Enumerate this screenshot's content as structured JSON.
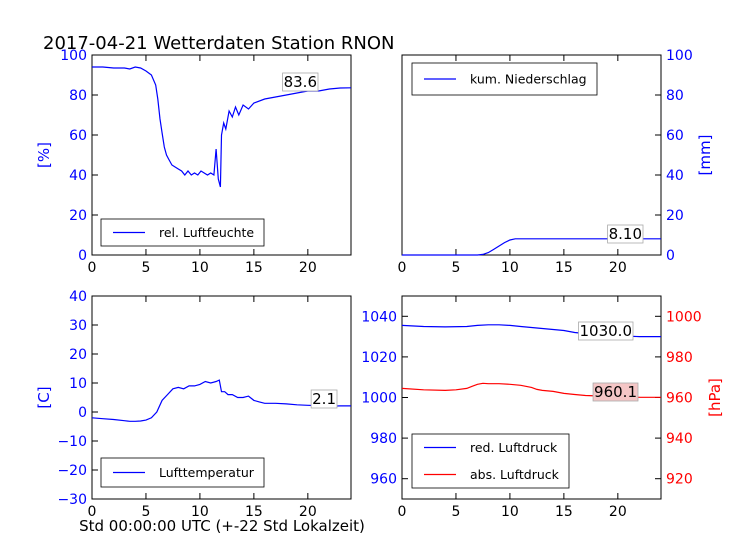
{
  "title": "2017-04-21 Wetterdaten Station RNON",
  "xlabel": "Std 00:00:00 UTC (+-22 Std Lokalzeit)",
  "colors": {
    "blue": "#0000ff",
    "red": "#ff0000"
  },
  "chart_data": [
    {
      "type": "line",
      "id": "humidity",
      "xlim": [
        0,
        24
      ],
      "ylim": [
        0,
        100
      ],
      "yticks": [
        0,
        20,
        40,
        60,
        80,
        100
      ],
      "xticks": [
        0,
        5,
        10,
        15,
        20
      ],
      "ylabel": "[%]",
      "ylabel_side": "left",
      "legend_position": "lower-left",
      "annotation": "83.6",
      "series": [
        {
          "name": "rel. Luftfeuchte",
          "color": "#0000ff",
          "x": [
            0,
            0.5,
            1,
            2,
            3,
            3.5,
            4,
            4.5,
            5,
            5.5,
            5.9,
            6.1,
            6.3,
            6.5,
            6.7,
            6.9,
            7.1,
            7.4,
            7.7,
            8.0,
            8.3,
            8.6,
            8.9,
            9.2,
            9.5,
            9.8,
            10.1,
            10.4,
            10.7,
            11.0,
            11.3,
            11.5,
            11.7,
            11.9,
            12.0,
            12.2,
            12.4,
            12.7,
            13.0,
            13.3,
            13.6,
            14.0,
            14.5,
            15,
            16,
            17,
            18,
            19,
            20,
            21,
            22,
            23,
            24
          ],
          "y": [
            94,
            94,
            94,
            93.5,
            93.5,
            93,
            94,
            93.5,
            92,
            90,
            85,
            78,
            68,
            61,
            54,
            50,
            48,
            45,
            44,
            43,
            42,
            40,
            42,
            40,
            41,
            40,
            42,
            41,
            40,
            41,
            40,
            53,
            38,
            34,
            60,
            66,
            63,
            72,
            69,
            74,
            70,
            75,
            73,
            76,
            78,
            79,
            80,
            81,
            82,
            82,
            83,
            83.5,
            83.6
          ]
        }
      ]
    },
    {
      "type": "line",
      "id": "precipitation",
      "xlim": [
        0,
        24
      ],
      "ylim": [
        0,
        100
      ],
      "yticks": [
        0,
        20,
        40,
        60,
        80,
        100
      ],
      "xticks": [
        0,
        5,
        10,
        15,
        20
      ],
      "ylabel": "[mm]",
      "ylabel_side": "right",
      "legend_position": "upper-left",
      "annotation": "8.10",
      "series": [
        {
          "name": "kum. Niederschlag",
          "color": "#0000ff",
          "x": [
            0,
            5,
            7,
            7.5,
            8,
            8.5,
            9,
            9.5,
            10,
            10.5,
            11,
            24
          ],
          "y": [
            0,
            0,
            0,
            0.3,
            1.2,
            2.8,
            4.5,
            6.2,
            7.5,
            8.1,
            8.1,
            8.1
          ]
        }
      ]
    },
    {
      "type": "line",
      "id": "temperature",
      "xlim": [
        0,
        24
      ],
      "ylim": [
        -30,
        40
      ],
      "yticks": [
        -30,
        -20,
        -10,
        0,
        10,
        20,
        30,
        40
      ],
      "xticks": [
        0,
        5,
        10,
        15,
        20
      ],
      "ylabel": "[C]",
      "ylabel_side": "left",
      "legend_position": "lower-left",
      "annotation": "2.1",
      "series": [
        {
          "name": "Lufttemperatur",
          "color": "#0000ff",
          "x": [
            0,
            1,
            2,
            3,
            3.5,
            4,
            4.5,
            5,
            5.5,
            6,
            6.5,
            7,
            7.5,
            8,
            8.5,
            9,
            9.5,
            10,
            10.5,
            11,
            11.5,
            11.8,
            12,
            12.3,
            12.6,
            13,
            13.5,
            14,
            14.5,
            15,
            15.5,
            16,
            17,
            18,
            19,
            20,
            21,
            22,
            23,
            24
          ],
          "y": [
            -2.0,
            -2.3,
            -2.6,
            -3.0,
            -3.2,
            -3.2,
            -3.1,
            -2.8,
            -2.0,
            0,
            4,
            6,
            8,
            8.5,
            8,
            9,
            9,
            9.5,
            10.5,
            10,
            10.5,
            11,
            7,
            7,
            6,
            6,
            5,
            5,
            5.5,
            4,
            3.5,
            3,
            3,
            2.8,
            2.5,
            2.3,
            2.2,
            2.0,
            2.1,
            2.1
          ]
        }
      ]
    },
    {
      "type": "line",
      "id": "pressure",
      "xlim": [
        0,
        24
      ],
      "ylim": [
        950,
        1050
      ],
      "yticks": [
        960,
        980,
        1000,
        1020,
        1040
      ],
      "y2lim": [
        910,
        1010
      ],
      "y2ticks": [
        920,
        940,
        960,
        980,
        1000
      ],
      "xticks": [
        0,
        5,
        10,
        15,
        20
      ],
      "y2label": "[hPa]",
      "ylabel_side": "left",
      "legend_position": "lower-left",
      "annotations": [
        {
          "text": "1030.0",
          "color": "#0000ff",
          "bg": "#ffffff"
        },
        {
          "text": "960.1",
          "color": "#ff0000",
          "bg": "#f4c6c6"
        }
      ],
      "series": [
        {
          "name": "red. Luftdruck",
          "color": "#0000ff",
          "axis": "left",
          "x": [
            0,
            2,
            4,
            6,
            7,
            8,
            9,
            10,
            11,
            12,
            13,
            14,
            15,
            16,
            17,
            18,
            19,
            20,
            21,
            22,
            23,
            24
          ],
          "y": [
            1035.5,
            1035.0,
            1034.8,
            1035.0,
            1035.5,
            1035.8,
            1035.8,
            1035.5,
            1035.0,
            1034.5,
            1034.0,
            1033.5,
            1033.0,
            1032.0,
            1031.5,
            1031.0,
            1030.8,
            1030.5,
            1030.2,
            1030.0,
            1030.0,
            1030.0
          ]
        },
        {
          "name": "abs. Luftdruck",
          "color": "#ff0000",
          "axis": "right",
          "x": [
            0,
            2,
            4,
            5,
            6,
            6.5,
            7,
            7.5,
            8,
            9,
            10,
            11,
            12,
            12.5,
            13,
            14,
            15,
            16,
            17,
            18,
            19,
            20,
            21,
            22,
            23,
            24
          ],
          "y": [
            964.5,
            963.8,
            963.5,
            963.8,
            964.5,
            965.5,
            966.5,
            967.0,
            966.8,
            966.8,
            966.5,
            966.0,
            965.0,
            964.0,
            963.5,
            963.0,
            962.0,
            961.5,
            961.0,
            960.8,
            960.5,
            960.3,
            960.2,
            960.1,
            960.1,
            960.1
          ]
        }
      ]
    }
  ]
}
